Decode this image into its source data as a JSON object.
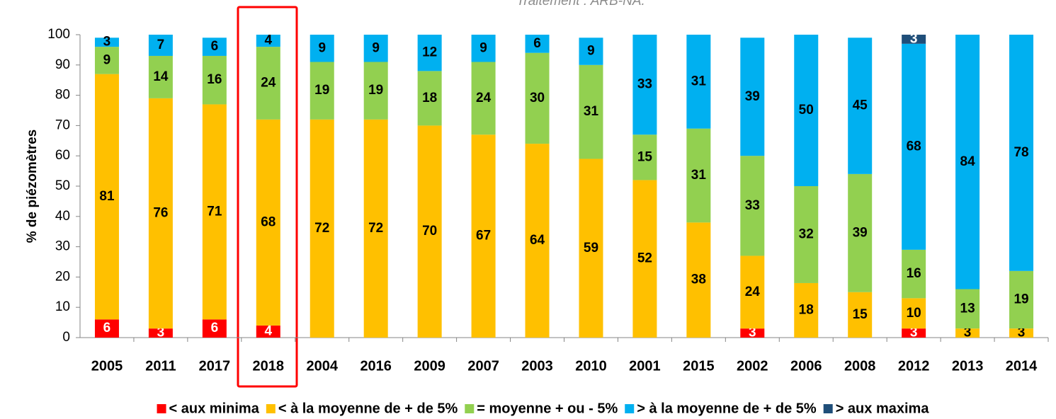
{
  "chart_data": {
    "type": "stacked_bar",
    "annotation": "Traitement : ARB-NA.",
    "y_label": "% de piézomètres",
    "categories": [
      "2005",
      "2011",
      "2017",
      "2018",
      "2004",
      "2016",
      "2009",
      "2007",
      "2003",
      "2010",
      "2001",
      "2015",
      "2002",
      "2006",
      "2008",
      "2012",
      "2013",
      "2014"
    ],
    "series": [
      {
        "name": "< aux minima",
        "color": "#ff0000",
        "label_color": "#ffffff",
        "values": [
          6,
          3,
          6,
          4,
          null,
          null,
          null,
          null,
          null,
          null,
          null,
          null,
          3,
          null,
          null,
          3,
          null,
          null
        ]
      },
      {
        "name": "< à la moyenne de + de 5%",
        "color": "#ffc000",
        "label_color": "#000000",
        "values": [
          81,
          76,
          71,
          68,
          72,
          72,
          70,
          67,
          64,
          59,
          52,
          38,
          24,
          18,
          15,
          10,
          3,
          3
        ]
      },
      {
        "name": "= moyenne + ou - 5%",
        "color": "#92d050",
        "label_color": "#000000",
        "values": [
          9,
          14,
          16,
          24,
          19,
          19,
          18,
          24,
          30,
          31,
          15,
          31,
          33,
          32,
          39,
          16,
          13,
          19
        ]
      },
      {
        "name": "> à la moyenne de + de 5%",
        "color": "#00b0f0",
        "label_color": "#000000",
        "values": [
          3,
          7,
          6,
          4,
          9,
          9,
          12,
          9,
          6,
          9,
          33,
          31,
          39,
          50,
          45,
          68,
          84,
          78
        ]
      },
      {
        "name": "> aux maxima",
        "color": "#1f4e79",
        "label_color": "#ffffff",
        "values": [
          null,
          null,
          null,
          null,
          null,
          null,
          null,
          null,
          null,
          null,
          null,
          null,
          null,
          null,
          null,
          3,
          null,
          null
        ]
      }
    ],
    "ylim": [
      0,
      100
    ],
    "yticks": [
      0,
      10,
      20,
      30,
      40,
      50,
      60,
      70,
      80,
      90,
      100
    ],
    "grid": false
  }
}
